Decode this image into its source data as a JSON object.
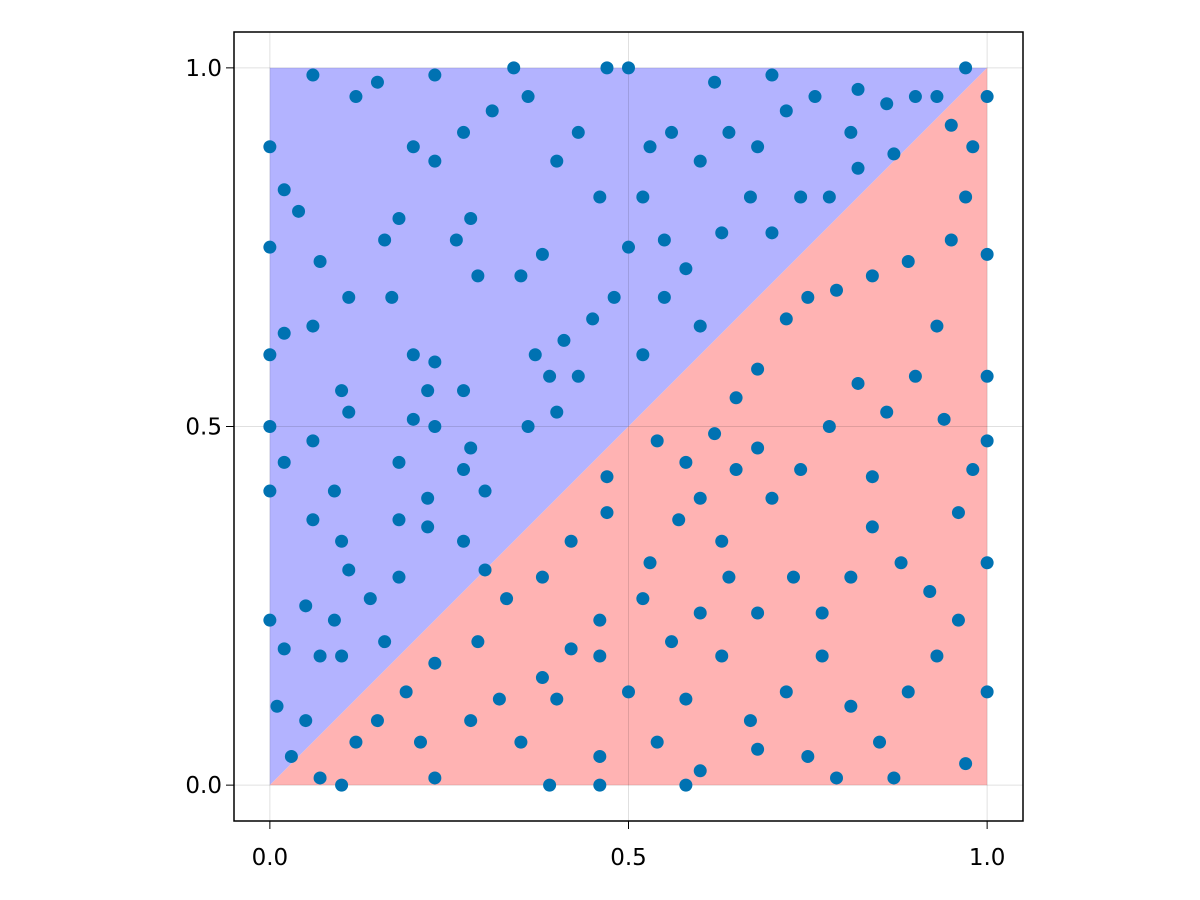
{
  "chart_data": {
    "type": "scatter",
    "color": "#0072b2",
    "regions": [
      {
        "color": "#b3b3ff",
        "x": [
          0,
          0,
          1
        ],
        "y": [
          0,
          1,
          1
        ]
      },
      {
        "color": "#ffb3b3",
        "x": [
          0,
          1,
          1
        ],
        "y": [
          0,
          0,
          1
        ]
      }
    ],
    "x": [
      0.06,
      0.0,
      0.0,
      0.0,
      0.0,
      0.0,
      0.0,
      0.01,
      0.03,
      0.07,
      0.1,
      0.23,
      0.39,
      0.46,
      0.58,
      0.79,
      0.87,
      0.97,
      1.0,
      1.0,
      1.0,
      1.0,
      1.0,
      1.0,
      0.97,
      0.9,
      0.82,
      0.7,
      0.62,
      0.5,
      0.47,
      0.34,
      0.23,
      0.15,
      0.12,
      0.02,
      0.04,
      0.07,
      0.11,
      0.02,
      0.06,
      0.1,
      0.11,
      0.06,
      0.02,
      0.09,
      0.06,
      0.1,
      0.11,
      0.05,
      0.09,
      0.02,
      0.07,
      0.1,
      0.05,
      0.16,
      0.18,
      0.2,
      0.23,
      0.27,
      0.31,
      0.28,
      0.26,
      0.29,
      0.17,
      0.2,
      0.23,
      0.27,
      0.22,
      0.2,
      0.23,
      0.28,
      0.18,
      0.22,
      0.27,
      0.3,
      0.18,
      0.22,
      0.27,
      0.3,
      0.18,
      0.14,
      0.16,
      0.35,
      0.38,
      0.4,
      0.43,
      0.46,
      0.5,
      0.48,
      0.45,
      0.41,
      0.37,
      0.39,
      0.43,
      0.36,
      0.4,
      0.36,
      0.53,
      0.56,
      0.6,
      0.64,
      0.68,
      0.72,
      0.76,
      0.81,
      0.86,
      0.95,
      0.93,
      0.52,
      0.55,
      0.58,
      0.63,
      0.67,
      0.7,
      0.74,
      0.78,
      0.82,
      0.87,
      0.55,
      0.6,
      0.52,
      0.54,
      0.58,
      0.62,
      0.65,
      0.68,
      0.72,
      0.75,
      0.79,
      0.84,
      0.89,
      0.95,
      0.97,
      0.98,
      0.93,
      0.9,
      0.86,
      0.82,
      0.78,
      0.74,
      0.7,
      0.65,
      0.63,
      0.57,
      0.53,
      0.47,
      0.42,
      0.38,
      0.33,
      0.29,
      0.23,
      0.19,
      0.15,
      0.12,
      0.21,
      0.28,
      0.35,
      0.4,
      0.46,
      0.5,
      0.54,
      0.58,
      0.63,
      0.67,
      0.72,
      0.77,
      0.81,
      0.85,
      0.89,
      0.93,
      0.96,
      0.92,
      0.88,
      0.84,
      0.81,
      0.77,
      0.73,
      0.68,
      0.64,
      0.6,
      0.56,
      0.52,
      0.46,
      0.42,
      0.38,
      0.32,
      0.46,
      0.6,
      0.68,
      0.75,
      0.96,
      0.98,
      0.94,
      0.84,
      0.68,
      0.6,
      0.47
    ],
    "values": [
      0.99,
      0.89,
      0.75,
      0.6,
      0.5,
      0.41,
      0.23,
      0.11,
      0.04,
      0.01,
      0.0,
      0.01,
      0.0,
      0.0,
      0.0,
      0.01,
      0.01,
      0.03,
      0.13,
      0.31,
      0.48,
      0.57,
      0.74,
      0.96,
      1.0,
      0.96,
      0.97,
      0.99,
      0.98,
      1.0,
      1.0,
      1.0,
      0.99,
      0.98,
      0.96,
      0.83,
      0.8,
      0.73,
      0.68,
      0.63,
      0.64,
      0.55,
      0.52,
      0.48,
      0.45,
      0.41,
      0.37,
      0.34,
      0.3,
      0.25,
      0.23,
      0.19,
      0.18,
      0.18,
      0.09,
      0.76,
      0.79,
      0.89,
      0.87,
      0.91,
      0.94,
      0.79,
      0.76,
      0.71,
      0.68,
      0.6,
      0.59,
      0.55,
      0.55,
      0.51,
      0.5,
      0.47,
      0.45,
      0.4,
      0.44,
      0.41,
      0.37,
      0.36,
      0.34,
      0.3,
      0.29,
      0.26,
      0.2,
      0.71,
      0.74,
      0.87,
      0.91,
      0.82,
      0.75,
      0.68,
      0.65,
      0.62,
      0.6,
      0.57,
      0.57,
      0.5,
      0.52,
      0.96,
      0.89,
      0.91,
      0.87,
      0.91,
      0.89,
      0.94,
      0.96,
      0.91,
      0.95,
      0.92,
      0.96,
      0.82,
      0.76,
      0.72,
      0.77,
      0.82,
      0.77,
      0.82,
      0.82,
      0.86,
      0.88,
      0.68,
      0.64,
      0.6,
      0.48,
      0.45,
      0.49,
      0.54,
      0.58,
      0.65,
      0.68,
      0.69,
      0.71,
      0.73,
      0.76,
      0.82,
      0.89,
      0.64,
      0.57,
      0.52,
      0.56,
      0.5,
      0.44,
      0.4,
      0.44,
      0.34,
      0.37,
      0.31,
      0.38,
      0.34,
      0.29,
      0.26,
      0.2,
      0.17,
      0.13,
      0.09,
      0.06,
      0.06,
      0.09,
      0.06,
      0.12,
      0.18,
      0.13,
      0.06,
      0.12,
      0.18,
      0.09,
      0.13,
      0.18,
      0.11,
      0.06,
      0.13,
      0.18,
      0.23,
      0.27,
      0.31,
      0.36,
      0.29,
      0.24,
      0.29,
      0.24,
      0.29,
      0.24,
      0.2,
      0.26,
      0.23,
      0.19,
      0.15,
      0.12,
      0.04,
      0.02,
      0.05,
      0.04,
      0.38,
      0.44,
      0.51,
      0.43,
      0.47,
      0.4,
      0.43
    ],
    "xlim": [
      -0.05,
      1.05
    ],
    "ylim": [
      -0.05,
      1.05
    ],
    "xticks": [
      {
        "value": 0,
        "label": "0.0"
      },
      0.5,
      {
        "value": 1,
        "label": "1.0"
      }
    ],
    "yticks": [
      {
        "value": 0,
        "label": "0.0"
      },
      0.5,
      {
        "value": 1,
        "label": "1.0"
      }
    ],
    "grid": true
  }
}
